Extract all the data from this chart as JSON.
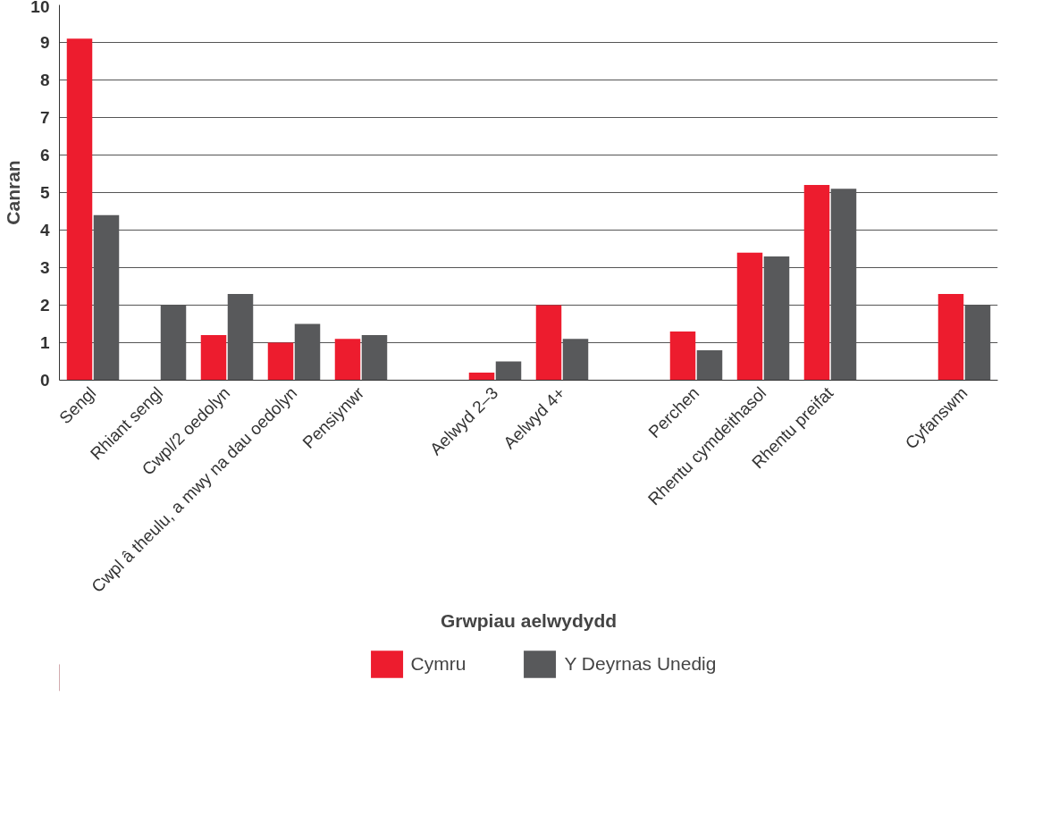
{
  "chart_data": {
    "type": "bar",
    "xlabel": "Grwpiau aelwydydd",
    "ylabel": "Canran",
    "categories": [
      "Sengl",
      "Rhiant sengl",
      "Cwpl/2 oedolyn",
      "Cwpl â theulu, a mwy na dau oedolyn",
      "Pensiynwr",
      null,
      "Aelwyd 2–3",
      "Aelwyd 4+",
      null,
      "Perchen",
      "Rhentu cymdeithasol",
      "Rhentu preifat",
      null,
      "Cyfanswm"
    ],
    "series": [
      {
        "name": "Cymru",
        "color": "#ed1c2e",
        "values": [
          9.1,
          null,
          1.2,
          1.0,
          1.1,
          null,
          0.2,
          2.0,
          null,
          1.3,
          3.4,
          5.2,
          null,
          2.3
        ]
      },
      {
        "name": "Y Deyrnas Unedig",
        "color": "#58595b",
        "values": [
          4.4,
          2.0,
          2.3,
          1.5,
          1.2,
          null,
          0.5,
          1.1,
          null,
          0.8,
          3.3,
          5.1,
          null,
          2.0
        ]
      }
    ],
    "ylim": [
      0,
      10
    ],
    "yticks": [
      0,
      1,
      2,
      3,
      4,
      5,
      6,
      7,
      8,
      9,
      10
    ],
    "grid": "y",
    "legend": "bottom"
  }
}
